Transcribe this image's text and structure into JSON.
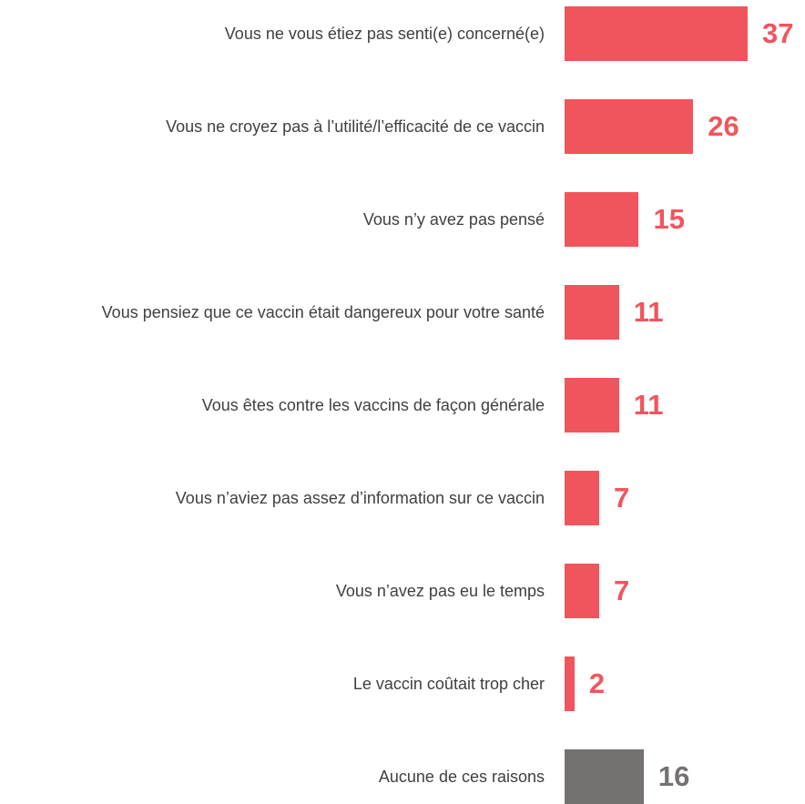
{
  "chart_data": {
    "type": "barh",
    "categories": [
      "Vous ne vous étiez pas senti(e) concerné(e)",
      "Vous ne croyez pas à l’utilité/l’efficacité de ce vaccin",
      "Vous n’y avez pas pensé",
      "Vous pensiez que ce vaccin était dangereux pour votre santé",
      "Vous êtes contre les vaccins de façon générale",
      "Vous n’aviez pas assez d’information sur ce vaccin",
      "Vous n’avez pas eu le temps",
      "Le vaccin coûtait trop cher",
      "Aucune de ces raisons"
    ],
    "values": [
      37,
      26,
      15,
      11,
      11,
      7,
      7,
      2,
      16
    ],
    "colors": [
      "#f0555d",
      "#f0555d",
      "#f0555d",
      "#f0555d",
      "#f0555d",
      "#f0555d",
      "#f0555d",
      "#f0555d",
      "#767171"
    ],
    "xlim": [
      0,
      37
    ]
  }
}
